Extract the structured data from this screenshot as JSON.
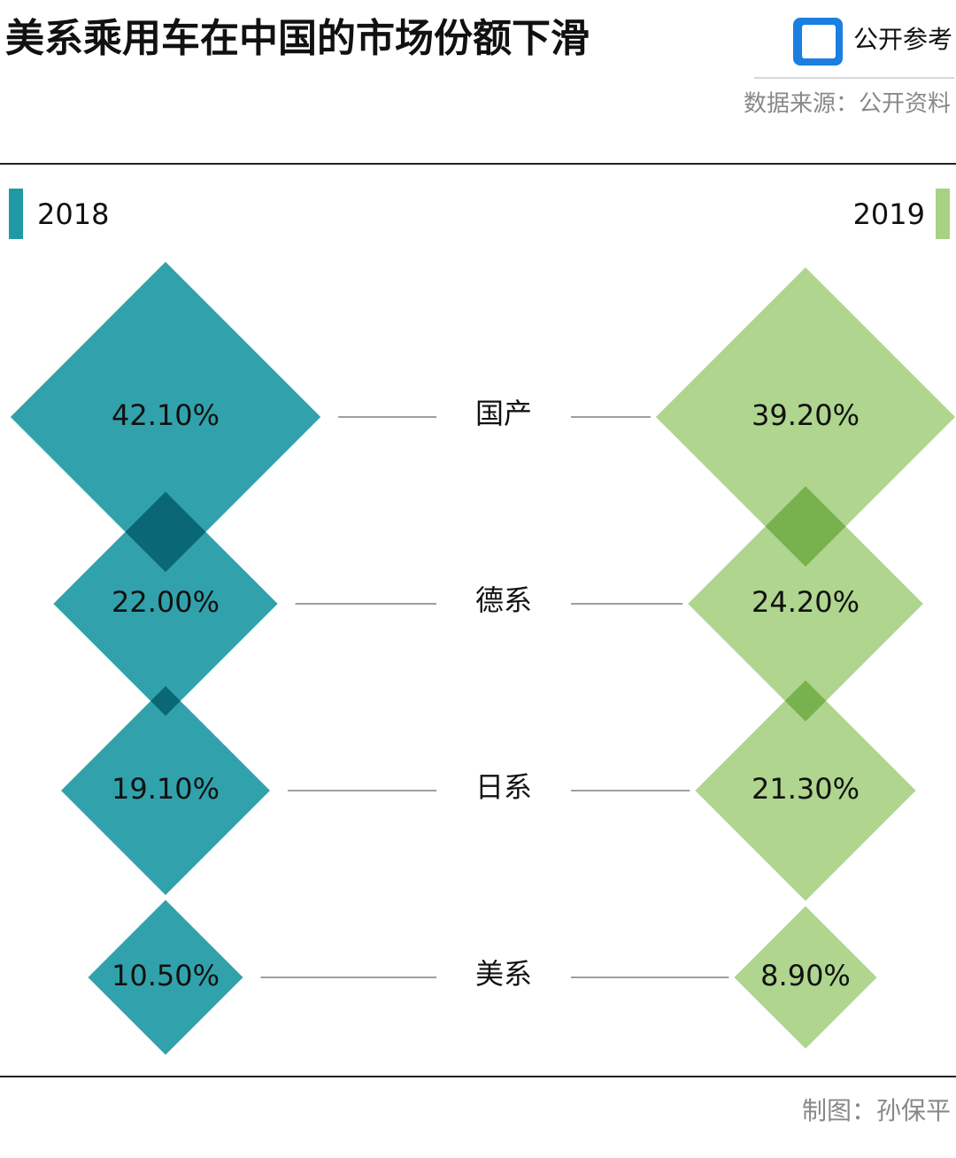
{
  "chart_data": {
    "type": "diamond",
    "title": "美系乘用车在中国的市场份额下滑",
    "brand": "公开参考",
    "source": "数据来源：公开资料",
    "credit": "制图：孙保平",
    "categories": [
      "国产",
      "德系",
      "日系",
      "美系"
    ],
    "series": [
      {
        "name": "2018",
        "color": "#1f9aa5",
        "values": [
          42.1,
          22.0,
          19.1,
          10.5
        ],
        "value_labels": [
          "42.10%",
          "22.00%",
          "19.10%",
          "10.50%"
        ]
      },
      {
        "name": "2019",
        "color": "#a8d184",
        "values": [
          39.2,
          24.2,
          21.3,
          8.9
        ],
        "value_labels": [
          "39.20%",
          "24.20%",
          "21.30%",
          "8.90%"
        ]
      }
    ]
  }
}
